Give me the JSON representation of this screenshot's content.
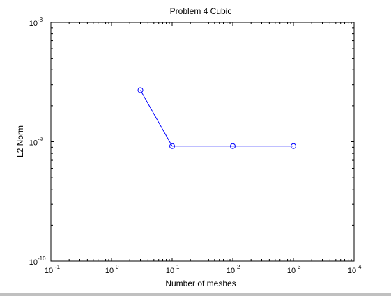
{
  "chart_data": {
    "type": "line",
    "title": "Problem 4 Cubic",
    "xlabel": "Number of meshes",
    "ylabel": "L2 Norm",
    "xscale": "log",
    "yscale": "log",
    "xlim": [
      0.1,
      10000
    ],
    "ylim": [
      1e-10,
      1e-08
    ],
    "grid": false,
    "legend": "none",
    "x_ticks": [
      {
        "value": 0.1,
        "base": "10",
        "exp": "-1"
      },
      {
        "value": 1,
        "base": "10",
        "exp": "0"
      },
      {
        "value": 10,
        "base": "10",
        "exp": "1"
      },
      {
        "value": 100,
        "base": "10",
        "exp": "2"
      },
      {
        "value": 1000,
        "base": "10",
        "exp": "3"
      },
      {
        "value": 10000,
        "base": "10",
        "exp": "4"
      }
    ],
    "y_ticks": [
      {
        "value": 1e-10,
        "base": "10",
        "exp": "-10"
      },
      {
        "value": 1e-09,
        "base": "10",
        "exp": "-9"
      },
      {
        "value": 1e-08,
        "base": "10",
        "exp": "-8"
      }
    ],
    "series": [
      {
        "color": "#0000ff",
        "marker": "circle",
        "points": [
          {
            "x": 3,
            "y": 2.7e-09
          },
          {
            "x": 10,
            "y": 9.2e-10
          },
          {
            "x": 100,
            "y": 9.2e-10
          },
          {
            "x": 1000,
            "y": 9.2e-10
          }
        ]
      }
    ]
  }
}
